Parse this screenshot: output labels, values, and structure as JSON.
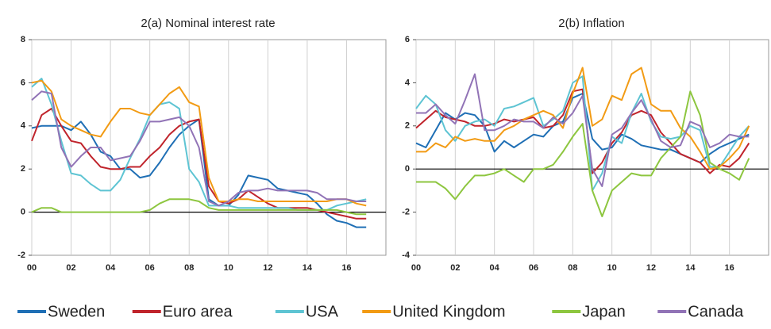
{
  "chart_data": [
    {
      "type": "line",
      "title": "2(a) Nominal interest rate",
      "x": [
        0,
        0.5,
        1,
        1.5,
        2,
        2.5,
        3,
        3.5,
        4,
        4.5,
        5,
        5.5,
        6,
        6.5,
        7,
        7.5,
        8,
        8.5,
        9,
        9.5,
        10,
        10.5,
        11,
        11.5,
        12,
        12.5,
        13,
        13.5,
        14,
        14.5,
        15,
        15.5,
        16,
        16.5,
        17
      ],
      "xlim": [
        0,
        18
      ],
      "xticks": [
        {
          "value": 0,
          "label": "00"
        },
        {
          "value": 2,
          "label": "02"
        },
        {
          "value": 4,
          "label": "04"
        },
        {
          "value": 6,
          "label": "06"
        },
        {
          "value": 8,
          "label": "08"
        },
        {
          "value": 10,
          "label": "10"
        },
        {
          "value": 12,
          "label": "12"
        },
        {
          "value": 14,
          "label": "14"
        },
        {
          "value": 16,
          "label": "16"
        }
      ],
      "ylim": [
        -2,
        8
      ],
      "yticks": [
        -2,
        0,
        2,
        4,
        6,
        8
      ],
      "grid": "x",
      "legend": "bottom",
      "series": [
        {
          "name": "Sweden",
          "color": "#1f6fb5",
          "values": [
            3.9,
            4.0,
            4.0,
            4.0,
            3.8,
            4.2,
            3.6,
            2.8,
            2.6,
            2.0,
            2.0,
            1.6,
            1.7,
            2.3,
            3.0,
            3.6,
            4.0,
            4.3,
            0.6,
            0.3,
            0.3,
            0.8,
            1.7,
            1.6,
            1.5,
            1.1,
            1.0,
            0.9,
            0.8,
            0.4,
            -0.1,
            -0.4,
            -0.5,
            -0.7,
            -0.7
          ]
        },
        {
          "name": "Euro area",
          "color": "#c0242c",
          "values": [
            3.3,
            4.5,
            4.8,
            4.0,
            3.3,
            3.2,
            2.6,
            2.1,
            2.0,
            2.0,
            2.1,
            2.1,
            2.6,
            3.0,
            3.6,
            4.0,
            4.2,
            4.3,
            1.2,
            0.5,
            0.4,
            0.6,
            1.0,
            0.7,
            0.4,
            0.2,
            0.2,
            0.2,
            0.2,
            0.1,
            0.0,
            -0.1,
            -0.2,
            -0.3,
            -0.3
          ]
        },
        {
          "name": "USA",
          "color": "#5ec4d3",
          "values": [
            5.8,
            6.2,
            5.0,
            3.3,
            1.8,
            1.7,
            1.3,
            1.0,
            1.0,
            1.5,
            2.5,
            3.4,
            4.5,
            5.0,
            5.1,
            4.8,
            2.0,
            1.4,
            0.3,
            0.3,
            0.3,
            0.2,
            0.2,
            0.2,
            0.2,
            0.2,
            0.2,
            0.1,
            0.1,
            0.1,
            0.1,
            0.3,
            0.4,
            0.5,
            0.6
          ]
        },
        {
          "name": "United Kingdom",
          "color": "#f29b14",
          "values": [
            6.0,
            6.1,
            5.6,
            4.3,
            4.0,
            3.8,
            3.6,
            3.5,
            4.2,
            4.8,
            4.8,
            4.6,
            4.5,
            5.0,
            5.5,
            5.8,
            5.1,
            4.9,
            1.6,
            0.5,
            0.5,
            0.6,
            0.6,
            0.5,
            0.5,
            0.5,
            0.5,
            0.5,
            0.5,
            0.5,
            0.5,
            0.6,
            0.6,
            0.4,
            0.3
          ]
        },
        {
          "name": "Japan",
          "color": "#8dc63f",
          "values": [
            0.0,
            0.2,
            0.2,
            0.0,
            0.0,
            0.0,
            0.0,
            0.0,
            0.0,
            0.0,
            0.0,
            0.0,
            0.1,
            0.4,
            0.6,
            0.6,
            0.6,
            0.5,
            0.2,
            0.1,
            0.1,
            0.1,
            0.1,
            0.1,
            0.1,
            0.1,
            0.1,
            0.1,
            0.1,
            0.1,
            0.1,
            0.1,
            0.0,
            -0.1,
            -0.1
          ]
        },
        {
          "name": "Canada",
          "color": "#9173b6",
          "values": [
            5.2,
            5.6,
            5.5,
            3.0,
            2.1,
            2.6,
            3.0,
            3.0,
            2.4,
            2.5,
            2.6,
            3.3,
            4.2,
            4.2,
            4.3,
            4.4,
            4.0,
            3.0,
            0.5,
            0.3,
            0.5,
            0.9,
            1.0,
            1.0,
            1.1,
            1.0,
            1.0,
            1.0,
            1.0,
            0.9,
            0.6,
            0.6,
            0.6,
            0.5,
            0.5
          ]
        }
      ]
    },
    {
      "type": "line",
      "title": "2(b) Inflation",
      "x": [
        0,
        0.5,
        1,
        1.5,
        2,
        2.5,
        3,
        3.5,
        4,
        4.5,
        5,
        5.5,
        6,
        6.5,
        7,
        7.5,
        8,
        8.5,
        9,
        9.5,
        10,
        10.5,
        11,
        11.5,
        12,
        12.5,
        13,
        13.5,
        14,
        14.5,
        15,
        15.5,
        16,
        16.5,
        17
      ],
      "xlim": [
        0,
        18
      ],
      "xticks": [
        {
          "value": 0,
          "label": "00"
        },
        {
          "value": 2,
          "label": "02"
        },
        {
          "value": 4,
          "label": "04"
        },
        {
          "value": 6,
          "label": "06"
        },
        {
          "value": 8,
          "label": "08"
        },
        {
          "value": 10,
          "label": "10"
        },
        {
          "value": 12,
          "label": "12"
        },
        {
          "value": 14,
          "label": "14"
        },
        {
          "value": 16,
          "label": "16"
        }
      ],
      "ylim": [
        -4,
        6
      ],
      "yticks": [
        -4,
        -2,
        0,
        2,
        4,
        6
      ],
      "grid": "x",
      "series": [
        {
          "color": "#1f6fb5",
          "values": [
            1.2,
            1.0,
            1.8,
            2.6,
            2.3,
            2.6,
            2.5,
            2.0,
            0.8,
            1.3,
            1.0,
            1.3,
            1.6,
            1.5,
            2.0,
            2.2,
            3.3,
            3.5,
            1.4,
            0.9,
            1.0,
            1.6,
            1.4,
            1.1,
            1.0,
            0.9,
            0.9,
            0.7,
            0.5,
            0.3,
            0.7,
            1.0,
            1.2,
            1.4,
            1.6
          ]
        },
        {
          "color": "#c0242c",
          "values": [
            1.9,
            2.3,
            2.7,
            2.4,
            2.3,
            2.2,
            2.0,
            2.0,
            2.1,
            2.3,
            2.2,
            2.3,
            2.4,
            1.9,
            2.0,
            2.5,
            3.6,
            3.7,
            -0.2,
            0.3,
            1.2,
            1.7,
            2.5,
            2.7,
            2.5,
            1.7,
            1.2,
            0.7,
            0.5,
            0.3,
            -0.2,
            0.2,
            0.1,
            0.5,
            1.2
          ]
        },
        {
          "color": "#5ec4d3",
          "values": [
            2.8,
            3.4,
            3.0,
            1.8,
            1.3,
            2.0,
            2.2,
            2.3,
            2.0,
            2.8,
            2.9,
            3.1,
            3.3,
            2.0,
            2.3,
            2.7,
            4.0,
            4.3,
            -1.0,
            -0.2,
            1.5,
            1.2,
            2.6,
            3.5,
            2.2,
            1.5,
            1.4,
            1.5,
            2.0,
            1.8,
            0.1,
            0.1,
            0.8,
            1.5,
            2.0
          ]
        },
        {
          "color": "#f29b14",
          "values": [
            0.8,
            0.8,
            1.2,
            1.0,
            1.5,
            1.3,
            1.4,
            1.3,
            1.3,
            1.8,
            2.0,
            2.3,
            2.5,
            2.7,
            2.5,
            1.9,
            3.5,
            4.7,
            2.0,
            2.3,
            3.4,
            3.2,
            4.4,
            4.7,
            3.0,
            2.7,
            2.7,
            1.9,
            1.5,
            0.8,
            0.0,
            0.1,
            0.5,
            1.0,
            2.0
          ]
        },
        {
          "color": "#8dc63f",
          "values": [
            -0.6,
            -0.6,
            -0.6,
            -0.9,
            -1.4,
            -0.8,
            -0.3,
            -0.3,
            -0.2,
            0.0,
            -0.3,
            -0.6,
            0.0,
            0.0,
            0.2,
            0.8,
            1.5,
            2.1,
            -1.0,
            -2.2,
            -1.0,
            -0.6,
            -0.2,
            -0.3,
            -0.3,
            0.5,
            1.0,
            1.5,
            3.6,
            2.5,
            0.3,
            0.0,
            -0.2,
            -0.5,
            0.5
          ]
        },
        {
          "color": "#9173b6",
          "values": [
            2.6,
            2.6,
            3.0,
            2.5,
            2.1,
            3.2,
            4.4,
            1.8,
            1.8,
            2.0,
            2.3,
            2.2,
            2.2,
            1.9,
            2.4,
            2.1,
            2.6,
            3.4,
            0.0,
            -0.8,
            1.6,
            1.9,
            2.6,
            3.2,
            2.3,
            1.3,
            1.0,
            1.1,
            2.2,
            2.0,
            1.0,
            1.2,
            1.6,
            1.5,
            1.5
          ]
        }
      ]
    }
  ]
}
